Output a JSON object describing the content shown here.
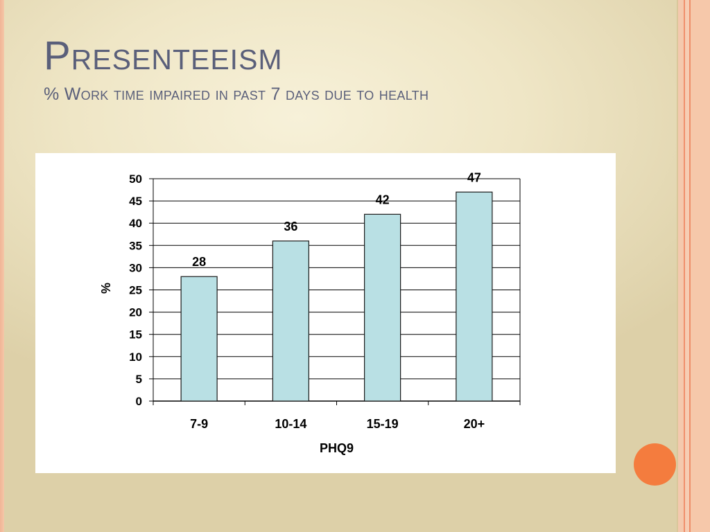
{
  "slide": {
    "title": "Presenteeism",
    "subtitle": "% Work time impaired in past 7 days due to health"
  },
  "theme": {
    "bar_fill": "#b9e0e4",
    "bar_stroke": "#1a1a1a",
    "accent_dot": "#f47c3e",
    "title_color": "#5a5f7a"
  },
  "chart_data": {
    "type": "bar",
    "categories": [
      "7-9",
      "10-14",
      "15-19",
      "20+"
    ],
    "values": [
      28,
      36,
      42,
      47
    ],
    "data_labels": [
      "28",
      "36",
      "42",
      "47"
    ],
    "xlabel": "PHQ9",
    "ylabel": "%",
    "ylim": [
      0,
      50
    ],
    "yticks": [
      0,
      5,
      10,
      15,
      20,
      25,
      30,
      35,
      40,
      45,
      50
    ],
    "grid": true,
    "legend": "none"
  }
}
